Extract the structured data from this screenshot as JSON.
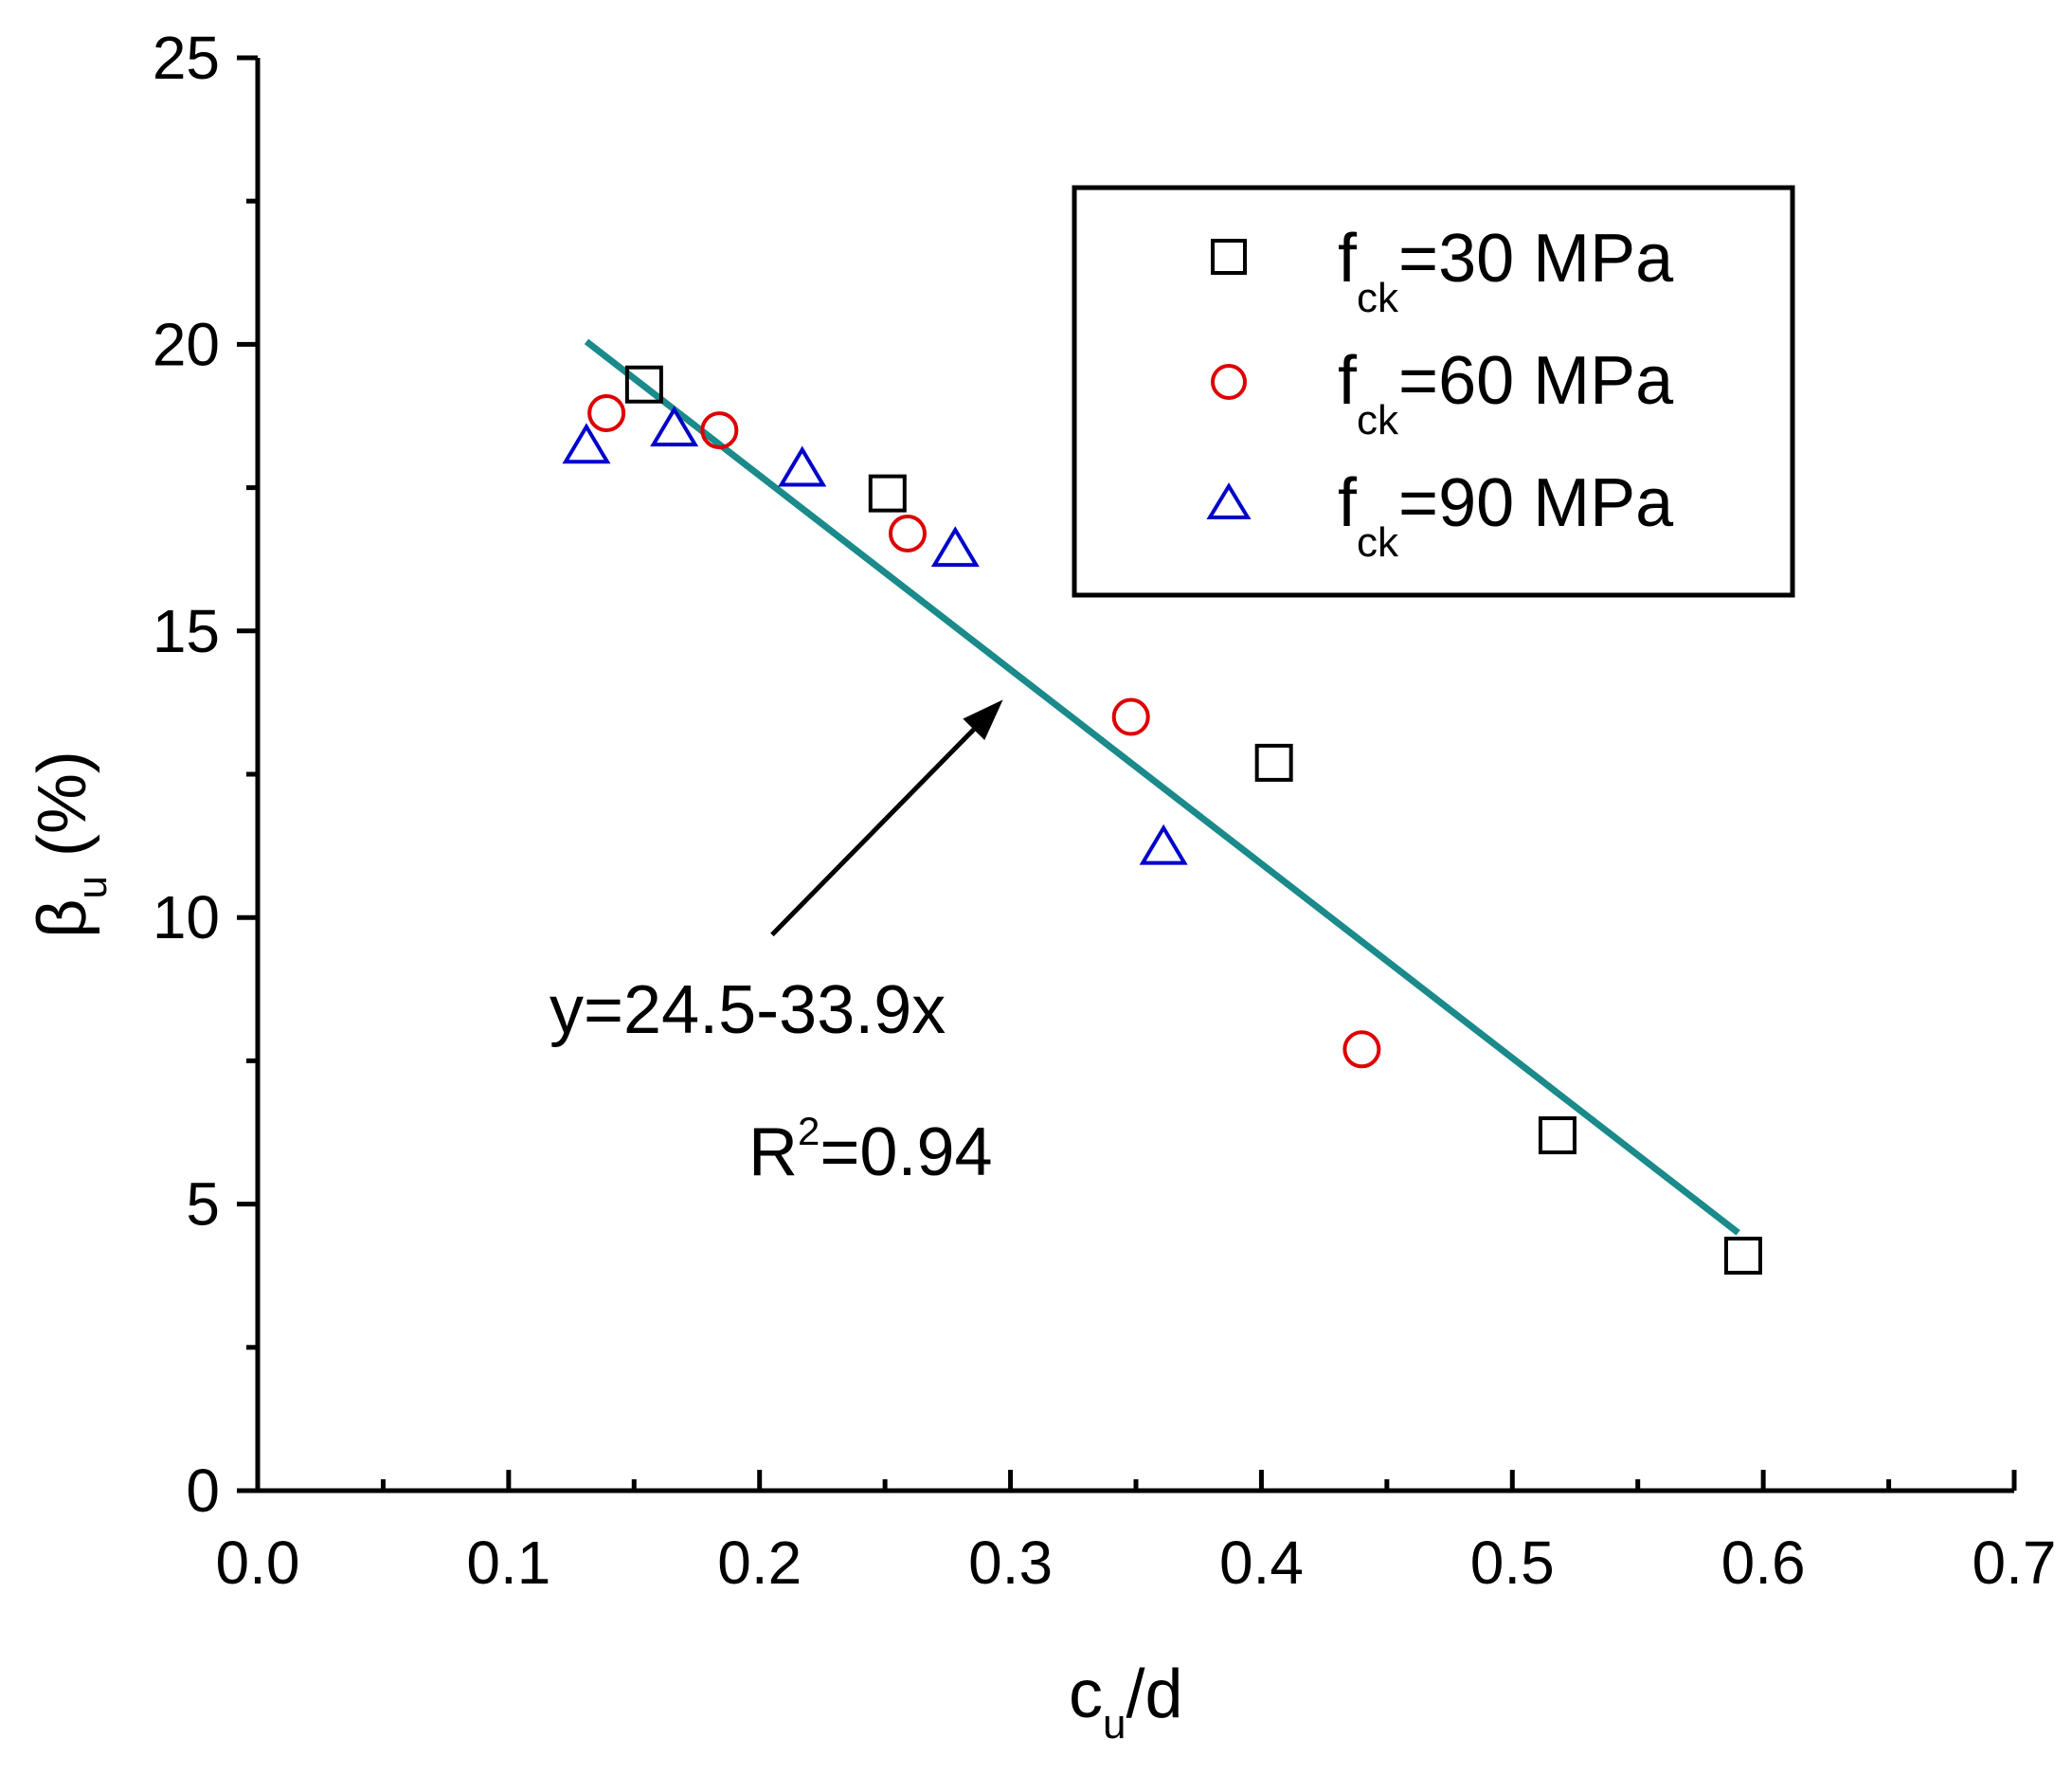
{
  "chart_data": {
    "type": "scatter",
    "title": "",
    "xlabel": {
      "main": "c",
      "sub": "u",
      "tail": "/d"
    },
    "ylabel": {
      "main": "β",
      "sub": "u",
      "tail": " (%)"
    },
    "xlim": [
      0.0,
      0.7
    ],
    "ylim": [
      0,
      25
    ],
    "xticks": [
      "0.0",
      "0.1",
      "0.2",
      "0.3",
      "0.4",
      "0.5",
      "0.6",
      "0.7"
    ],
    "yticks": [
      "0",
      "5",
      "10",
      "15",
      "20",
      "25"
    ],
    "grid": false,
    "legend_position": "top-right",
    "series": [
      {
        "name": "f_ck=30 MPa",
        "label_main": "f",
        "label_sub": "ck",
        "label_tail": "=30 MPa",
        "marker": "square",
        "color": "#000000",
        "points": [
          [
            0.154,
            19.3
          ],
          [
            0.251,
            17.4
          ],
          [
            0.405,
            12.7
          ],
          [
            0.518,
            6.2
          ],
          [
            0.592,
            4.1
          ]
        ]
      },
      {
        "name": "f_ck=60 MPa",
        "label_main": "f",
        "label_sub": "ck",
        "label_tail": "=60 MPa",
        "marker": "circle",
        "color": "#dd0000",
        "points": [
          [
            0.139,
            18.8
          ],
          [
            0.184,
            18.5
          ],
          [
            0.259,
            16.7
          ],
          [
            0.348,
            13.5
          ],
          [
            0.44,
            7.7
          ]
        ]
      },
      {
        "name": "f_ck=90 MPa",
        "label_main": "f",
        "label_sub": "ck",
        "label_tail": "=90 MPa",
        "marker": "triangle",
        "color": "#0000cc",
        "points": [
          [
            0.131,
            18.2
          ],
          [
            0.166,
            18.5
          ],
          [
            0.217,
            17.8
          ],
          [
            0.278,
            16.4
          ],
          [
            0.361,
            11.2
          ]
        ]
      }
    ],
    "fit_line": {
      "color": "#1a8a8a",
      "x": [
        0.131,
        0.59
      ],
      "y": [
        20.05,
        4.5
      ]
    },
    "annotations": {
      "equation": "y=24.5-33.9x",
      "r2_main": "R",
      "r2_sup": "2",
      "r2_tail": "=0.94",
      "arrow_from": [
        0.205,
        9.7
      ],
      "arrow_to": [
        0.297,
        13.8
      ]
    }
  }
}
